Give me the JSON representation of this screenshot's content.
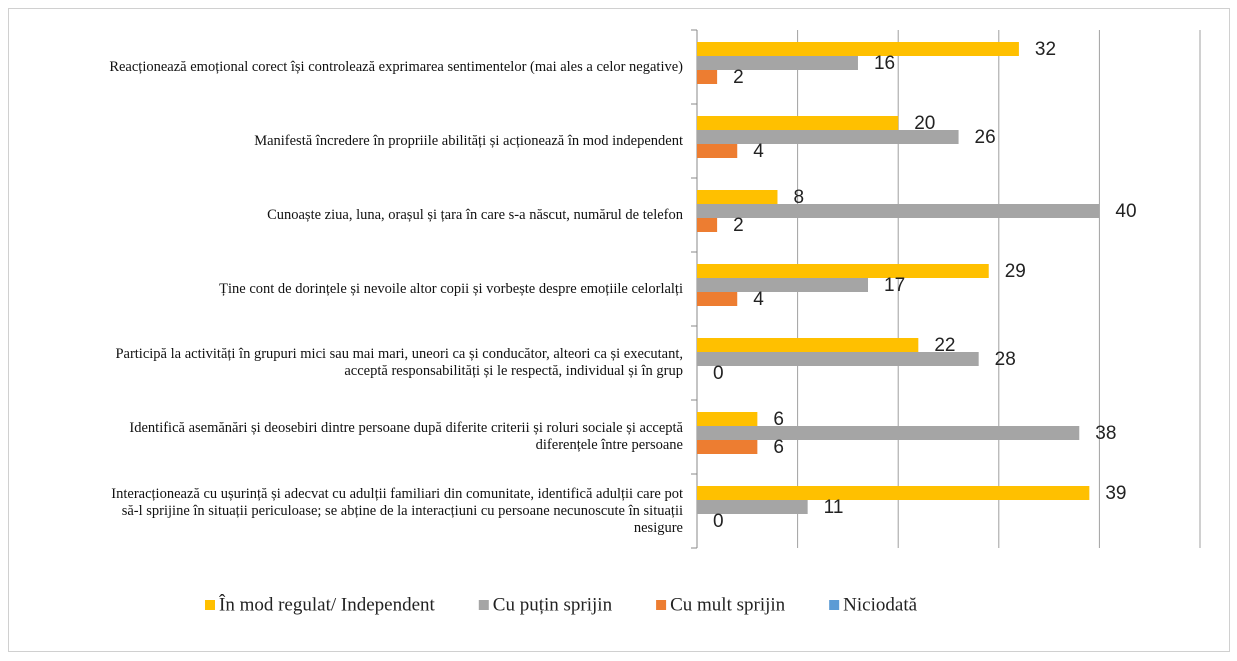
{
  "chart_data": {
    "type": "hbar",
    "categories": [
      "Reacționează emoțional corect își controlează exprimarea sentimentelor (mai ales a celor negative)",
      "Manifestă încredere în propriile  abilități  și acționează în mod independent",
      "Cunoaște ziua, luna,  orașul și țara în care s-a născut, numărul de telefon",
      "Ține cont de dorințele și nevoile  altor copii  și vorbește despre emoțiile  celorlalți",
      "Participă la activități în grupuri mici sau mai mari, uneori ca și conducător, alteori ca și executant, acceptă responsabilități și le respectă, individual  și în grup",
      "Identifică asemănări și deosebiri dintre persoane după diferite criterii și roluri sociale și acceptă diferențele între persoane",
      "Interacționează cu ușurință și adecvat cu adulții  familiari din comunitate, identifică  adulții  care pot să-l sprijine  în situații  periculoase; se abține de la interacțiuni  cu persoane necunoscute în situații  nesigure"
    ],
    "series": [
      {
        "name": "În mod regulat/ Independent",
        "color": "#ffc000",
        "values": [
          32,
          20,
          8,
          29,
          22,
          6,
          39
        ],
        "data_labels": true
      },
      {
        "name": "Cu puțin sprijin",
        "color": "#a5a5a5",
        "values": [
          16,
          26,
          40,
          17,
          28,
          38,
          11
        ],
        "data_labels": true
      },
      {
        "name": "Cu mult sprijin",
        "color": "#ed7d31",
        "values": [
          2,
          4,
          2,
          4,
          0,
          6,
          0
        ],
        "data_labels": true
      },
      {
        "name": "Niciodată",
        "color": "#5b9bd5",
        "values": [
          0,
          0,
          0,
          0,
          0,
          0,
          0
        ],
        "data_labels": false
      }
    ],
    "xlim": [
      0,
      50
    ],
    "gridlines": [
      0,
      10,
      20,
      30,
      40,
      50
    ],
    "legend": "bottom"
  }
}
